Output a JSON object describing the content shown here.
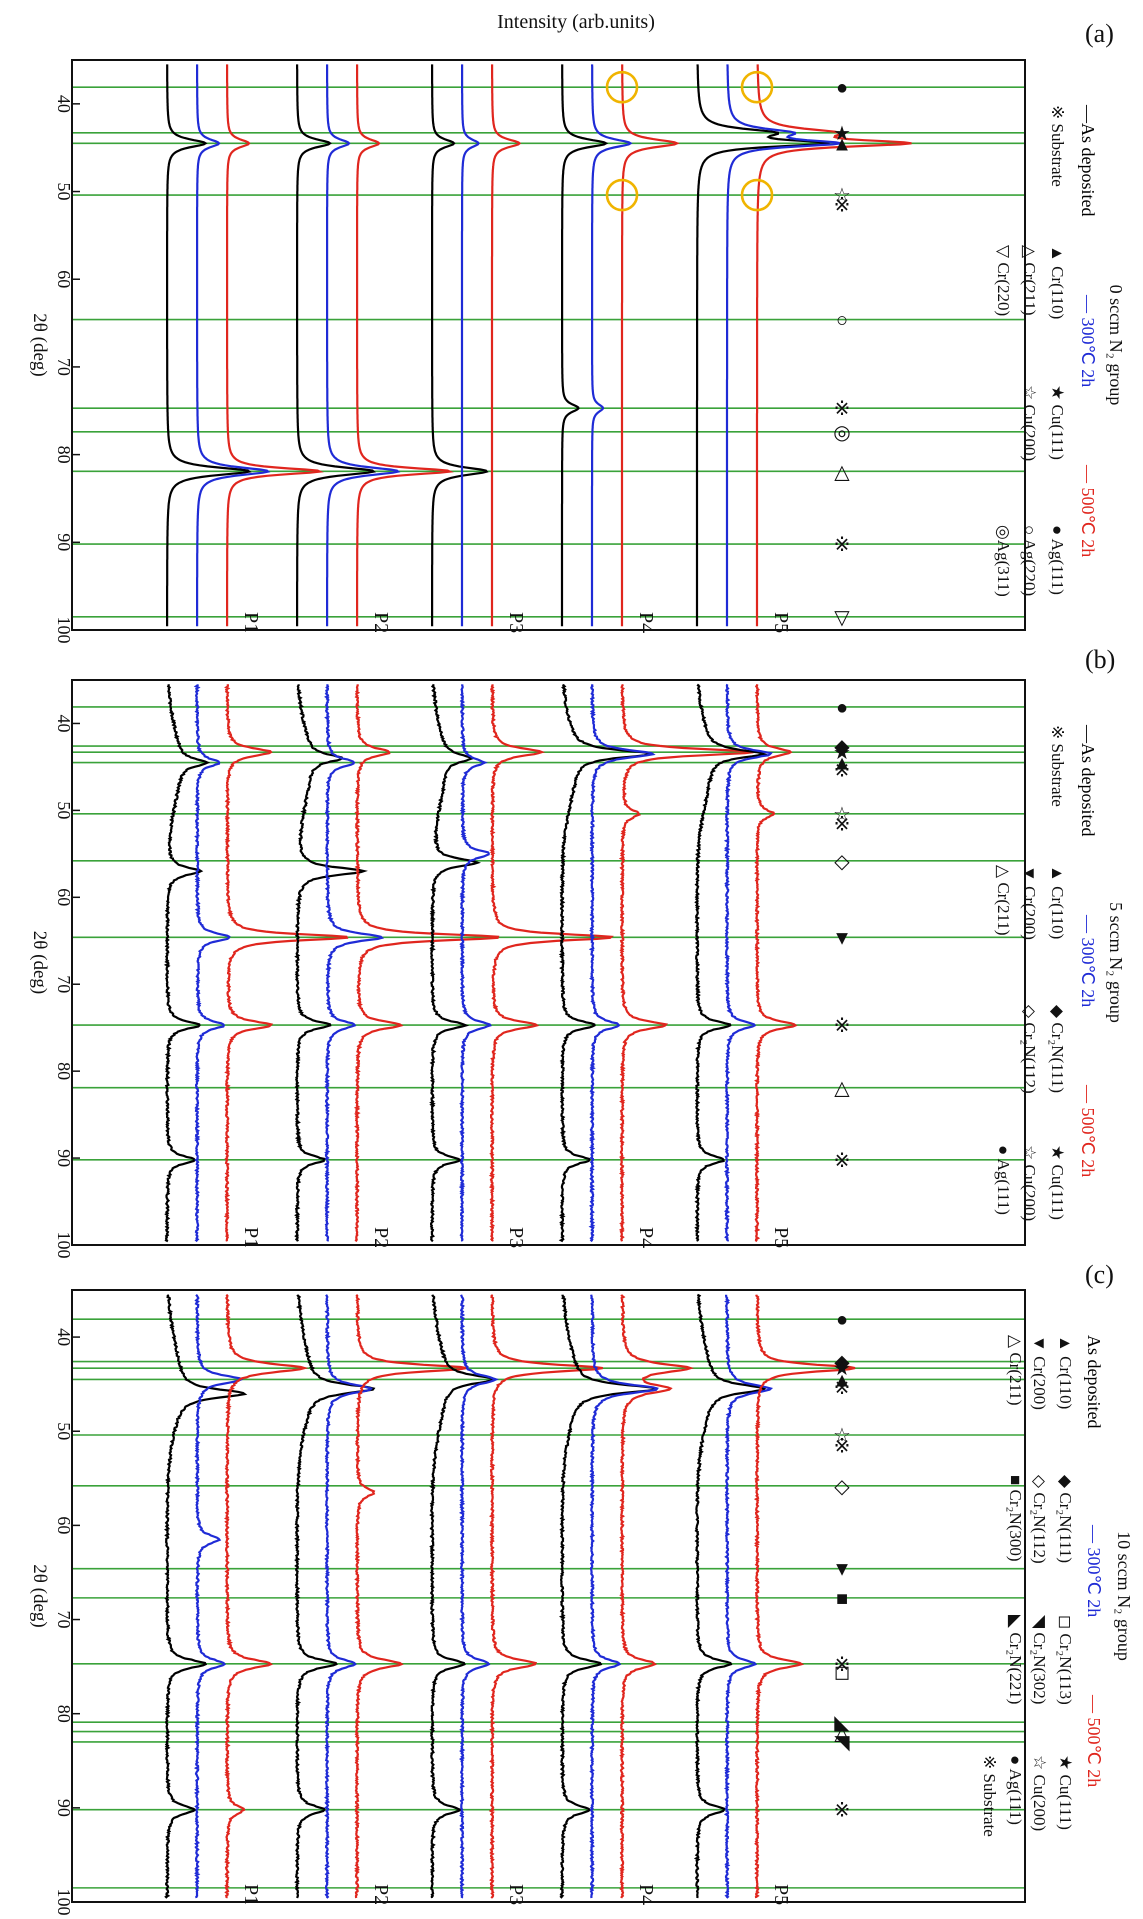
{
  "figure": {
    "intensity_label": "Intensity (arb.units)",
    "x_axis_label": "2θ (deg)",
    "x_ticks": [
      "40",
      "50",
      "60",
      "70",
      "80",
      "90",
      "100"
    ],
    "colors": {
      "as_deposited": "#000000",
      "t300": "#1f2bd6",
      "t500": "#e0261e",
      "ref_line": "#3aa23a",
      "highlight": "#f0b400"
    }
  },
  "chart_data": [
    {
      "type": "line",
      "panel_label": "(a)",
      "group_title": "0 sccm N₂ group",
      "xlim": [
        35,
        100
      ],
      "legend": {
        "series": [
          "—As deposited",
          "— 300℃ 2h",
          "— 500℃ 2h"
        ],
        "phases": [
          [
            "※ Substrate",
            "▲ Cr(110)",
            "★ Cu(111)",
            "● Ag(111)"
          ],
          [
            "",
            "△ Cr(211)",
            "☆ Cu(200)",
            "○ Ag(220)"
          ],
          [
            "",
            "▽ Cr(220)",
            "",
            "◎Ag(311)"
          ]
        ]
      },
      "ref_lines": [
        38.1,
        43.3,
        44.5,
        50.4,
        64.6,
        74.7,
        77.4,
        81.9,
        90.2,
        98.5
      ],
      "markers": [
        {
          "x": 38.1,
          "sym": "●"
        },
        {
          "x": 43.3,
          "sym": "★"
        },
        {
          "x": 44.5,
          "sym": "▲"
        },
        {
          "x": 50.4,
          "sym": "☆"
        },
        {
          "x": 51.5,
          "sym": "※"
        },
        {
          "x": 64.6,
          "sym": "○"
        },
        {
          "x": 74.7,
          "sym": "※"
        },
        {
          "x": 77.4,
          "sym": "◎"
        },
        {
          "x": 81.9,
          "sym": "△"
        },
        {
          "x": 90.2,
          "sym": "※"
        },
        {
          "x": 98.5,
          "sym": "▽"
        }
      ],
      "highlight_circles": [
        {
          "x": 38.1,
          "sample": "P4"
        },
        {
          "x": 50.4,
          "sample": "P4"
        },
        {
          "x": 38.1,
          "sample": "P5"
        },
        {
          "x": 50.4,
          "sample": "P5"
        }
      ],
      "samples": [
        {
          "name": "P1",
          "peaks": {
            "as": [
              [
                44.5,
                0.7
              ],
              [
                81.9,
                1.5
              ]
            ],
            "t300": [
              [
                44.5,
                0.4
              ],
              [
                81.9,
                1.3
              ]
            ],
            "t500": [
              [
                44.5,
                0.4
              ],
              [
                81.9,
                1.7
              ]
            ]
          }
        },
        {
          "name": "P2",
          "peaks": {
            "as": [
              [
                44.5,
                0.6
              ],
              [
                81.9,
                1.4
              ]
            ],
            "t300": [
              [
                44.5,
                0.4
              ],
              [
                81.9,
                1.3
              ]
            ],
            "t500": [
              [
                44.5,
                0.4
              ],
              [
                81.9,
                1.7
              ]
            ]
          }
        },
        {
          "name": "P3",
          "peaks": {
            "as": [
              [
                44.5,
                0.4
              ],
              [
                81.9,
                1.0
              ]
            ],
            "t300": [
              [
                44.5,
                0.3
              ]
            ],
            "t500": [
              [
                44.5,
                0.5
              ]
            ]
          }
        },
        {
          "name": "P4",
          "peaks": {
            "as": [
              [
                44.5,
                0.8
              ],
              [
                74.7,
                0.3
              ]
            ],
            "t300": [
              [
                44.5,
                0.7
              ],
              [
                74.7,
                0.2
              ]
            ],
            "t500": [
              [
                44.5,
                1.0
              ]
            ]
          }
        },
        {
          "name": "P5",
          "peaks": {
            "as": [
              [
                43.3,
                1.2
              ],
              [
                44.5,
                2.2
              ]
            ],
            "t300": [
              [
                43.3,
                1.0
              ],
              [
                44.5,
                1.9
              ]
            ],
            "t500": [
              [
                43.3,
                1.2
              ],
              [
                44.5,
                2.6
              ]
            ]
          }
        }
      ]
    },
    {
      "type": "line",
      "panel_label": "(b)",
      "group_title": "5 sccm N₂ group",
      "xlim": [
        35,
        100
      ],
      "legend": {
        "series": [
          "—As deposited",
          "— 300℃ 2h",
          "— 500℃ 2h"
        ],
        "phases": [
          [
            "※ Substrate",
            "▲ Cr(110)",
            "◆ Cr₂N(111)",
            "★ Cu(111)"
          ],
          [
            "",
            "▼ Cr(200)",
            "◇ Cr₂N(112)",
            "☆ Cu(200)"
          ],
          [
            "",
            "△ Cr(211)",
            "",
            "● Ag(111)"
          ]
        ]
      },
      "ref_lines": [
        38.1,
        42.6,
        43.3,
        44.5,
        50.4,
        55.8,
        64.6,
        74.7,
        81.9,
        90.2
      ],
      "markers": [
        {
          "x": 38.1,
          "sym": "●"
        },
        {
          "x": 42.6,
          "sym": "◆"
        },
        {
          "x": 43.3,
          "sym": "★"
        },
        {
          "x": 44.5,
          "sym": "▲"
        },
        {
          "x": 45.3,
          "sym": "※"
        },
        {
          "x": 50.4,
          "sym": "☆"
        },
        {
          "x": 51.5,
          "sym": "※"
        },
        {
          "x": 55.8,
          "sym": "◇"
        },
        {
          "x": 64.6,
          "sym": "▼"
        },
        {
          "x": 74.7,
          "sym": "※"
        },
        {
          "x": 81.9,
          "sym": "△"
        },
        {
          "x": 90.2,
          "sym": "※"
        }
      ],
      "samples": [
        {
          "name": "P1",
          "peaks": {
            "as": [
              [
                44.5,
                0.5
              ],
              [
                57.0,
                0.6
              ],
              [
                74.7,
                0.6
              ],
              [
                90.2,
                0.5
              ]
            ],
            "t300": [
              [
                44.5,
                0.4
              ],
              [
                64.6,
                0.6
              ],
              [
                74.7,
                0.5
              ]
            ],
            "t500": [
              [
                43.3,
                0.8
              ],
              [
                64.6,
                2.2
              ],
              [
                74.7,
                0.8
              ]
            ]
          }
        },
        {
          "name": "P2",
          "peaks": {
            "as": [
              [
                44.0,
                0.6
              ],
              [
                57.0,
                1.2
              ],
              [
                74.7,
                0.6
              ],
              [
                90.2,
                0.5
              ]
            ],
            "t300": [
              [
                44.5,
                0.5
              ],
              [
                64.6,
                1.0
              ],
              [
                74.7,
                0.5
              ]
            ],
            "t500": [
              [
                43.3,
                0.6
              ],
              [
                64.6,
                2.6
              ],
              [
                74.7,
                0.8
              ]
            ]
          }
        },
        {
          "name": "P3",
          "peaks": {
            "as": [
              [
                44.0,
                0.5
              ],
              [
                56.0,
                0.8
              ],
              [
                74.7,
                0.6
              ],
              [
                90.2,
                0.5
              ]
            ],
            "t300": [
              [
                44.5,
                0.4
              ],
              [
                55.0,
                0.5
              ],
              [
                74.7,
                0.5
              ]
            ],
            "t500": [
              [
                43.3,
                0.9
              ],
              [
                64.6,
                2.2
              ],
              [
                74.7,
                0.8
              ]
            ]
          }
        },
        {
          "name": "P4",
          "peaks": {
            "as": [
              [
                43.5,
                1.4
              ],
              [
                74.7,
                0.6
              ],
              [
                90.2,
                0.5
              ]
            ],
            "t300": [
              [
                43.5,
                1.1
              ],
              [
                74.7,
                0.5
              ]
            ],
            "t500": [
              [
                43.3,
                2.4
              ],
              [
                50.4,
                0.3
              ],
              [
                74.7,
                0.8
              ]
            ]
          }
        },
        {
          "name": "P5",
          "peaks": {
            "as": [
              [
                43.5,
                1.0
              ],
              [
                74.7,
                0.6
              ],
              [
                90.2,
                0.5
              ]
            ],
            "t300": [
              [
                43.5,
                0.8
              ],
              [
                74.7,
                0.5
              ]
            ],
            "t500": [
              [
                43.3,
                0.6
              ],
              [
                50.4,
                0.3
              ],
              [
                74.7,
                0.7
              ]
            ]
          }
        }
      ]
    },
    {
      "type": "line",
      "panel_label": "(c)",
      "group_title": "10 sccm N₂ group",
      "xlim": [
        35,
        100
      ],
      "legend": {
        "series": [
          "As deposited",
          "— 300℃ 2h",
          "— 500℃ 2h"
        ],
        "phases": [
          [
            "▲ Cr(110)",
            "◆ Cr₂N(111)",
            "◻ Cr₂N(113)",
            "★ Cu(111)"
          ],
          [
            "▼ Cr(200)",
            "◇ Cr₂N(112)",
            "◥ Cr₂N(302)",
            "☆ Cu(200)"
          ],
          [
            "△ Cr(211)",
            "■ Cr₂N(300)",
            "◣ Cr₂N(221)",
            "● Ag(111)"
          ],
          [
            "",
            "",
            "",
            "※ Substrate"
          ]
        ]
      },
      "ref_lines": [
        38.1,
        42.6,
        43.3,
        44.5,
        50.4,
        55.8,
        64.6,
        67.7,
        74.7,
        80.9,
        81.9,
        83.0,
        90.2,
        98.5
      ],
      "markers": [
        {
          "x": 38.1,
          "sym": "●"
        },
        {
          "x": 42.6,
          "sym": "◆"
        },
        {
          "x": 43.3,
          "sym": "★"
        },
        {
          "x": 44.5,
          "sym": "▲"
        },
        {
          "x": 45.3,
          "sym": "※"
        },
        {
          "x": 50.4,
          "sym": "☆"
        },
        {
          "x": 51.5,
          "sym": "※"
        },
        {
          "x": 55.8,
          "sym": "◇"
        },
        {
          "x": 64.6,
          "sym": "▼"
        },
        {
          "x": 67.7,
          "sym": "■"
        },
        {
          "x": 74.7,
          "sym": "※"
        },
        {
          "x": 75.5,
          "sym": "◻"
        },
        {
          "x": 80.9,
          "sym": "◣"
        },
        {
          "x": 82.0,
          "sym": "△"
        },
        {
          "x": 83.0,
          "sym": "◥"
        },
        {
          "x": 90.2,
          "sym": "※"
        }
      ],
      "samples": [
        {
          "name": "P1",
          "peaks": {
            "as": [
              [
                46.0,
                1.2
              ],
              [
                74.7,
                0.7
              ],
              [
                90.2,
                0.5
              ]
            ],
            "t300": [
              [
                44.5,
                0.8
              ],
              [
                61.5,
                0.4
              ],
              [
                74.7,
                0.5
              ]
            ],
            "t500": [
              [
                43.3,
                1.4
              ],
              [
                74.7,
                0.8
              ],
              [
                90.2,
                0.3
              ]
            ]
          }
        },
        {
          "name": "P2",
          "peaks": {
            "as": [
              [
                45.5,
                1.2
              ],
              [
                74.7,
                0.7
              ],
              [
                90.2,
                0.5
              ]
            ],
            "t300": [
              [
                45.5,
                0.8
              ],
              [
                74.7,
                0.5
              ]
            ],
            "t500": [
              [
                43.3,
                2.0
              ],
              [
                56.5,
                0.3
              ],
              [
                74.7,
                0.8
              ]
            ]
          }
        },
        {
          "name": "P3",
          "peaks": {
            "as": [
              [
                44.5,
                0.9
              ],
              [
                74.7,
                0.6
              ],
              [
                90.2,
                0.5
              ]
            ],
            "t300": [
              [
                44.5,
                0.6
              ],
              [
                74.7,
                0.5
              ]
            ],
            "t500": [
              [
                43.3,
                2.0
              ],
              [
                74.7,
                0.8
              ]
            ]
          }
        },
        {
          "name": "P4",
          "peaks": {
            "as": [
              [
                45.5,
                1.5
              ],
              [
                74.7,
                0.7
              ],
              [
                90.2,
                0.5
              ]
            ],
            "t300": [
              [
                45.5,
                1.2
              ],
              [
                74.7,
                0.5
              ]
            ],
            "t500": [
              [
                43.3,
                1.2
              ],
              [
                45.5,
                0.8
              ],
              [
                74.7,
                0.6
              ]
            ]
          }
        },
        {
          "name": "P5",
          "peaks": {
            "as": [
              [
                45.5,
                1.0
              ],
              [
                74.7,
                0.6
              ],
              [
                90.2,
                0.5
              ]
            ],
            "t300": [
              [
                45.5,
                0.8
              ],
              [
                74.7,
                0.5
              ]
            ],
            "t500": [
              [
                43.3,
                1.8
              ],
              [
                74.7,
                0.8
              ]
            ]
          }
        }
      ]
    }
  ]
}
